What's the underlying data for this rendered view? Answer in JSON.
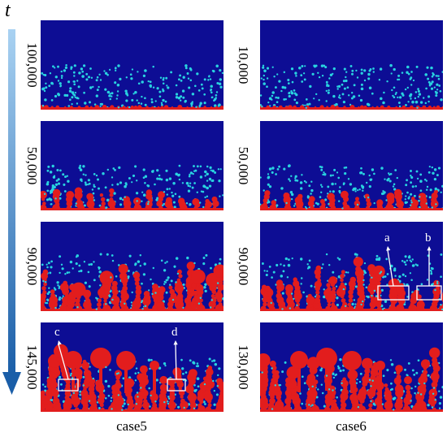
{
  "axis": {
    "time_symbol": "t"
  },
  "columns": [
    {
      "case_label": "case5",
      "steps": [
        "100,000",
        "50,000",
        "90,000",
        "145,000"
      ]
    },
    {
      "case_label": "case6",
      "steps": [
        "10,000",
        "50,000",
        "90,000",
        "130,000"
      ]
    }
  ],
  "annotations": [
    {
      "label": "a",
      "column": 1,
      "row": 2
    },
    {
      "label": "b",
      "column": 1,
      "row": 2
    },
    {
      "label": "c",
      "column": 0,
      "row": 3
    },
    {
      "label": "d",
      "column": 0,
      "row": 3
    }
  ],
  "colors": {
    "background": "#0d0d94",
    "droplet": "#e21d1d",
    "particle": "#29d3e0",
    "arrow_start": "#a9d2f2",
    "arrow_end": "#1a5ea8",
    "annotation": "#ffffff"
  }
}
